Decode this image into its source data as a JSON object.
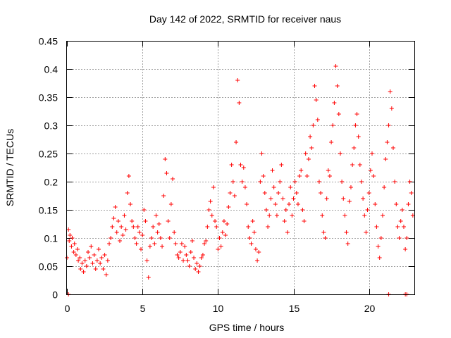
{
  "chart_data": {
    "type": "scatter",
    "title": "Day 142 of 2022, SRMTID for receiver naus",
    "xlabel": "GPS time / hours",
    "ylabel": "SRMTID / TECUs",
    "xlim": [
      0,
      23
    ],
    "ylim": [
      0,
      0.45
    ],
    "xticks": [
      0,
      5,
      10,
      15,
      20
    ],
    "xtick_labels": [
      "0",
      "5",
      "10",
      "15",
      "20"
    ],
    "yticks": [
      0,
      0.05,
      0.1,
      0.15,
      0.2,
      0.25,
      0.3,
      0.35,
      0.4,
      0.45
    ],
    "ytick_labels": [
      "0",
      "0.05",
      "0.1",
      "0.15",
      "0.2",
      "0.25",
      "0.3",
      "0.35",
      "0.4",
      "0.45"
    ],
    "grid": true,
    "marker": "+",
    "series": [
      {
        "name": "SRMTID",
        "color": "#ff0000",
        "points": [
          [
            0.0,
            0.065
          ],
          [
            0.1,
            0.115
          ],
          [
            0.15,
            0.095
          ],
          [
            0.2,
            0.105
          ],
          [
            0.3,
            0.085
          ],
          [
            0.35,
            0.1
          ],
          [
            0.45,
            0.075
          ],
          [
            0.5,
            0.09
          ],
          [
            0.6,
            0.07
          ],
          [
            0.7,
            0.08
          ],
          [
            0.75,
            0.06
          ],
          [
            0.85,
            0.065
          ],
          [
            0.9,
            0.045
          ],
          [
            1.0,
            0.055
          ],
          [
            1.1,
            0.04
          ],
          [
            1.2,
            0.06
          ],
          [
            1.3,
            0.05
          ],
          [
            1.4,
            0.075
          ],
          [
            1.5,
            0.065
          ],
          [
            1.6,
            0.085
          ],
          [
            1.7,
            0.055
          ],
          [
            1.8,
            0.07
          ],
          [
            1.9,
            0.045
          ],
          [
            2.0,
            0.06
          ],
          [
            2.1,
            0.08
          ],
          [
            2.2,
            0.055
          ],
          [
            2.3,
            0.065
          ],
          [
            2.4,
            0.045
          ],
          [
            2.5,
            0.07
          ],
          [
            2.6,
            0.035
          ],
          [
            2.7,
            0.06
          ],
          [
            2.8,
            0.09
          ],
          [
            2.9,
            0.1
          ],
          [
            3.0,
            0.12
          ],
          [
            3.1,
            0.135
          ],
          [
            3.2,
            0.155
          ],
          [
            3.3,
            0.11
          ],
          [
            3.4,
            0.13
          ],
          [
            3.5,
            0.095
          ],
          [
            3.6,
            0.12
          ],
          [
            3.7,
            0.105
          ],
          [
            3.8,
            0.14
          ],
          [
            3.9,
            0.115
          ],
          [
            4.0,
            0.18
          ],
          [
            4.1,
            0.21
          ],
          [
            4.2,
            0.16
          ],
          [
            4.3,
            0.13
          ],
          [
            4.4,
            0.12
          ],
          [
            4.5,
            0.1
          ],
          [
            4.6,
            0.09
          ],
          [
            4.7,
            0.12
          ],
          [
            4.8,
            0.11
          ],
          [
            4.9,
            0.08
          ],
          [
            5.0,
            0.105
          ],
          [
            5.1,
            0.15
          ],
          [
            5.2,
            0.13
          ],
          [
            5.3,
            0.06
          ],
          [
            5.4,
            0.03
          ],
          [
            5.5,
            0.085
          ],
          [
            5.6,
            0.1
          ],
          [
            5.7,
            0.12
          ],
          [
            5.8,
            0.09
          ],
          [
            5.9,
            0.14
          ],
          [
            6.0,
            0.11
          ],
          [
            6.1,
            0.125
          ],
          [
            6.2,
            0.1
          ],
          [
            6.3,
            0.085
          ],
          [
            6.4,
            0.175
          ],
          [
            6.5,
            0.24
          ],
          [
            6.6,
            0.215
          ],
          [
            6.7,
            0.13
          ],
          [
            6.8,
            0.1
          ],
          [
            6.9,
            0.16
          ],
          [
            7.0,
            0.205
          ],
          [
            7.1,
            0.11
          ],
          [
            7.2,
            0.09
          ],
          [
            7.3,
            0.07
          ],
          [
            7.4,
            0.065
          ],
          [
            7.5,
            0.075
          ],
          [
            7.6,
            0.09
          ],
          [
            7.7,
            0.06
          ],
          [
            7.8,
            0.085
          ],
          [
            7.9,
            0.07
          ],
          [
            8.0,
            0.06
          ],
          [
            8.1,
            0.05
          ],
          [
            8.2,
            0.075
          ],
          [
            8.3,
            0.095
          ],
          [
            8.4,
            0.065
          ],
          [
            8.5,
            0.045
          ],
          [
            8.6,
            0.055
          ],
          [
            8.7,
            0.04
          ],
          [
            8.8,
            0.05
          ],
          [
            8.9,
            0.065
          ],
          [
            9.0,
            0.07
          ],
          [
            9.1,
            0.09
          ],
          [
            9.2,
            0.095
          ],
          [
            9.3,
            0.12
          ],
          [
            9.4,
            0.15
          ],
          [
            9.5,
            0.165
          ],
          [
            9.6,
            0.14
          ],
          [
            9.7,
            0.19
          ],
          [
            9.8,
            0.13
          ],
          [
            9.9,
            0.12
          ],
          [
            10.0,
            0.08
          ],
          [
            10.1,
            0.1
          ],
          [
            10.2,
            0.085
          ],
          [
            10.3,
            0.11
          ],
          [
            10.4,
            0.13
          ],
          [
            10.5,
            0.105
          ],
          [
            10.6,
            0.125
          ],
          [
            10.7,
            0.155
          ],
          [
            10.8,
            0.18
          ],
          [
            10.9,
            0.23
          ],
          [
            11.0,
            0.2
          ],
          [
            11.1,
            0.175
          ],
          [
            11.2,
            0.27
          ],
          [
            11.3,
            0.38
          ],
          [
            11.4,
            0.34
          ],
          [
            11.5,
            0.23
          ],
          [
            11.6,
            0.2
          ],
          [
            11.7,
            0.225
          ],
          [
            11.8,
            0.19
          ],
          [
            11.9,
            0.16
          ],
          [
            12.0,
            0.12
          ],
          [
            12.1,
            0.1
          ],
          [
            12.2,
            0.09
          ],
          [
            12.3,
            0.13
          ],
          [
            12.4,
            0.11
          ],
          [
            12.5,
            0.08
          ],
          [
            12.6,
            0.06
          ],
          [
            12.7,
            0.075
          ],
          [
            12.8,
            0.2
          ],
          [
            12.9,
            0.25
          ],
          [
            13.0,
            0.21
          ],
          [
            13.1,
            0.18
          ],
          [
            13.2,
            0.15
          ],
          [
            13.3,
            0.12
          ],
          [
            13.4,
            0.14
          ],
          [
            13.5,
            0.17
          ],
          [
            13.6,
            0.22
          ],
          [
            13.7,
            0.19
          ],
          [
            13.8,
            0.16
          ],
          [
            13.9,
            0.14
          ],
          [
            14.0,
            0.18
          ],
          [
            14.1,
            0.2
          ],
          [
            14.2,
            0.23
          ],
          [
            14.3,
            0.17
          ],
          [
            14.4,
            0.13
          ],
          [
            14.5,
            0.15
          ],
          [
            14.6,
            0.11
          ],
          [
            14.7,
            0.16
          ],
          [
            14.8,
            0.19
          ],
          [
            14.9,
            0.14
          ],
          [
            15.0,
            0.17
          ],
          [
            15.1,
            0.2
          ],
          [
            15.2,
            0.18
          ],
          [
            15.3,
            0.16
          ],
          [
            15.4,
            0.21
          ],
          [
            15.5,
            0.22
          ],
          [
            15.6,
            0.15
          ],
          [
            15.7,
            0.13
          ],
          [
            15.8,
            0.25
          ],
          [
            15.9,
            0.21
          ],
          [
            16.0,
            0.24
          ],
          [
            16.1,
            0.28
          ],
          [
            16.2,
            0.26
          ],
          [
            16.3,
            0.3
          ],
          [
            16.4,
            0.37
          ],
          [
            16.5,
            0.345
          ],
          [
            16.6,
            0.31
          ],
          [
            16.7,
            0.2
          ],
          [
            16.8,
            0.18
          ],
          [
            16.9,
            0.14
          ],
          [
            17.0,
            0.11
          ],
          [
            17.1,
            0.1
          ],
          [
            17.2,
            0.17
          ],
          [
            17.3,
            0.22
          ],
          [
            17.4,
            0.21
          ],
          [
            17.5,
            0.27
          ],
          [
            17.6,
            0.3
          ],
          [
            17.7,
            0.34
          ],
          [
            17.8,
            0.405
          ],
          [
            17.9,
            0.37
          ],
          [
            18.0,
            0.32
          ],
          [
            18.1,
            0.25
          ],
          [
            18.2,
            0.2
          ],
          [
            18.3,
            0.17
          ],
          [
            18.4,
            0.14
          ],
          [
            18.5,
            0.11
          ],
          [
            18.6,
            0.09
          ],
          [
            18.7,
            0.165
          ],
          [
            18.8,
            0.19
          ],
          [
            18.9,
            0.23
          ],
          [
            19.0,
            0.26
          ],
          [
            19.1,
            0.3
          ],
          [
            19.2,
            0.32
          ],
          [
            19.3,
            0.28
          ],
          [
            19.4,
            0.23
          ],
          [
            19.5,
            0.2
          ],
          [
            19.6,
            0.17
          ],
          [
            19.7,
            0.14
          ],
          [
            19.8,
            0.11
          ],
          [
            19.9,
            0.15
          ],
          [
            20.0,
            0.18
          ],
          [
            20.1,
            0.22
          ],
          [
            20.2,
            0.25
          ],
          [
            20.3,
            0.21
          ],
          [
            20.4,
            0.16
          ],
          [
            20.5,
            0.12
          ],
          [
            20.6,
            0.085
          ],
          [
            20.7,
            0.065
          ],
          [
            20.8,
            0.1
          ],
          [
            20.9,
            0.14
          ],
          [
            21.0,
            0.19
          ],
          [
            21.1,
            0.24
          ],
          [
            21.2,
            0.27
          ],
          [
            21.3,
            0.3
          ],
          [
            21.4,
            0.36
          ],
          [
            21.5,
            0.33
          ],
          [
            21.6,
            0.26
          ],
          [
            21.7,
            0.2
          ],
          [
            21.8,
            0.16
          ],
          [
            21.9,
            0.12
          ],
          [
            22.0,
            0.1
          ],
          [
            22.1,
            0.13
          ],
          [
            22.2,
            0.15
          ],
          [
            22.3,
            0.12
          ],
          [
            22.4,
            0.08
          ],
          [
            22.5,
            0.1
          ],
          [
            22.6,
            0.16
          ],
          [
            22.7,
            0.2
          ],
          [
            22.8,
            0.18
          ],
          [
            22.9,
            0.14
          ],
          [
            0.1,
            0.0
          ],
          [
            21.3,
            0.0
          ],
          [
            22.4,
            0.0
          ],
          [
            22.5,
            0.0
          ]
        ]
      }
    ]
  }
}
